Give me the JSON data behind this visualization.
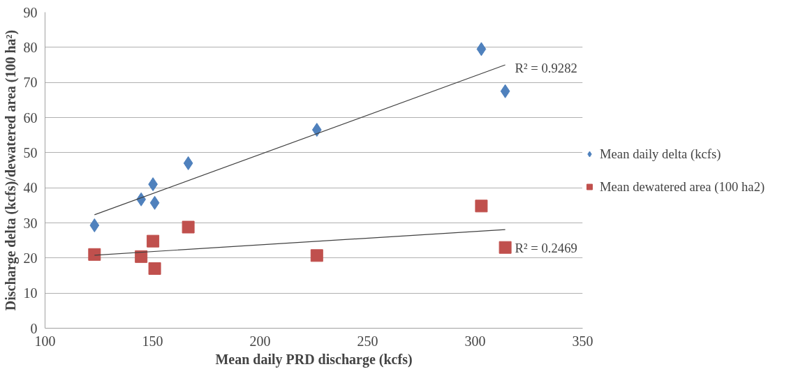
{
  "chart_data": {
    "type": "scatter",
    "xlabel": "Mean daily PRD discharge (kcfs)",
    "ylabel": "Discharge delta (kcfs)/dewatered area (100 ha²)",
    "xlim": [
      100,
      350
    ],
    "xticks": [
      100,
      150,
      200,
      250,
      300,
      350
    ],
    "ylim": [
      0,
      90
    ],
    "yticks": [
      0,
      10,
      20,
      30,
      40,
      50,
      60,
      70,
      80,
      90
    ],
    "grid": "y",
    "legend": "right",
    "series": [
      {
        "name": "Mean daily delta (kcfs)",
        "color": "#4f81bd",
        "marker": "diamond",
        "x": [
          123,
          144.7,
          150.2,
          151,
          166.6,
          226.4,
          302.9,
          314
        ],
        "values": [
          29.3,
          36.7,
          41,
          35.7,
          47,
          56.5,
          79.5,
          67.5
        ]
      },
      {
        "name": "Mean dewatered area (100 ha2)",
        "color": "#c0504d",
        "marker": "square",
        "x": [
          123,
          144.7,
          150.2,
          151,
          166.6,
          226.4,
          302.9,
          314
        ],
        "values": [
          21,
          20.4,
          24.8,
          17,
          28.8,
          20.7,
          34.8,
          23
        ]
      },
      {
        "type": "line",
        "color": "#404040",
        "marker": "none",
        "x": [
          123,
          314
        ],
        "values": [
          32.3,
          75
        ]
      },
      {
        "type": "line",
        "color": "#404040",
        "marker": "none",
        "x": [
          123,
          314
        ],
        "values": [
          20.8,
          28.1
        ]
      }
    ],
    "annotations": [
      "R² = 0.9282",
      "R² = 0.2469"
    ]
  }
}
